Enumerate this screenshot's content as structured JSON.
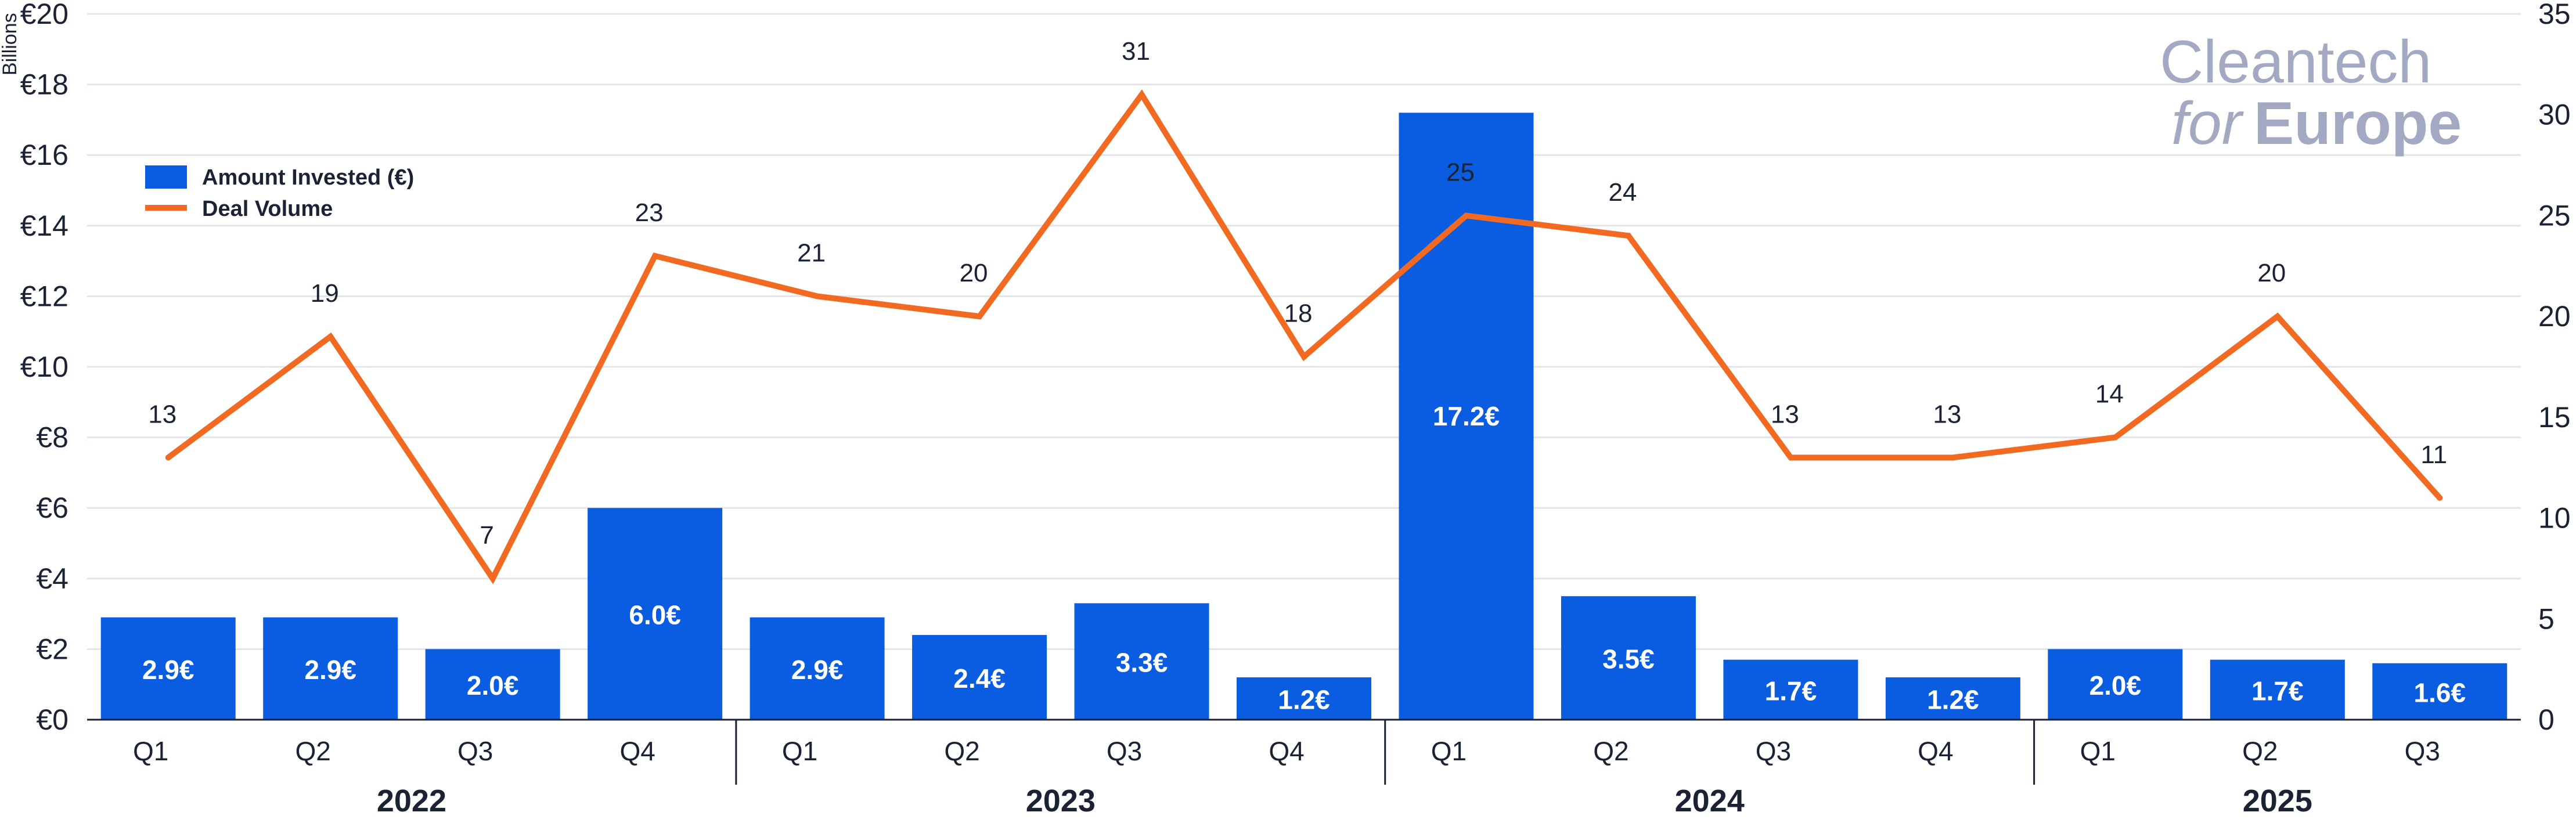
{
  "chart_data": {
    "type": "bar",
    "ylabel": "Billions",
    "y_left_ticks": [
      "€0",
      "€2",
      "€4",
      "€6",
      "€8",
      "€10",
      "€12",
      "€14",
      "€16",
      "€18",
      "€20"
    ],
    "y_right_ticks": [
      "0",
      "5",
      "10",
      "15",
      "20",
      "25",
      "30",
      "35"
    ],
    "ylim_left": [
      0,
      20
    ],
    "ylim_right": [
      0,
      35
    ],
    "grid": true,
    "legend_position": "top-left",
    "years": [
      "2022",
      "2023",
      "2024",
      "2025"
    ],
    "categories": [
      "Q1",
      "Q2",
      "Q3",
      "Q4",
      "Q1",
      "Q2",
      "Q3",
      "Q4",
      "Q1",
      "Q2",
      "Q3",
      "Q4",
      "Q1",
      "Q2",
      "Q3"
    ],
    "series": [
      {
        "name": "Amount Invested (€)",
        "type": "bar",
        "axis": "left",
        "color": "#0a5ce0",
        "values": [
          2.9,
          2.9,
          2.0,
          6.0,
          2.9,
          2.4,
          3.3,
          1.2,
          17.2,
          3.5,
          1.7,
          1.2,
          2.0,
          1.7,
          1.6
        ],
        "labels": [
          "2.9€",
          "2.9€",
          "2.0€",
          "6.0€",
          "2.9€",
          "2.4€",
          "3.3€",
          "1.2€",
          "17.2€",
          "3.5€",
          "1.7€",
          "1.2€",
          "2.0€",
          "1.7€",
          "1.6€"
        ]
      },
      {
        "name": "Deal Volume",
        "type": "line",
        "axis": "right",
        "color": "#f26a21",
        "values": [
          13,
          19,
          7,
          23,
          21,
          20,
          31,
          18,
          25,
          24,
          13,
          13,
          14,
          20,
          11
        ],
        "labels": [
          "13",
          "19",
          "7",
          "23",
          "21",
          "20",
          "31",
          "18",
          "25",
          "24",
          "13",
          "13",
          "14",
          "20",
          "11"
        ]
      }
    ]
  },
  "logo": {
    "line1": "Cleantech",
    "line2a": "for",
    "line2b": "Europe"
  }
}
